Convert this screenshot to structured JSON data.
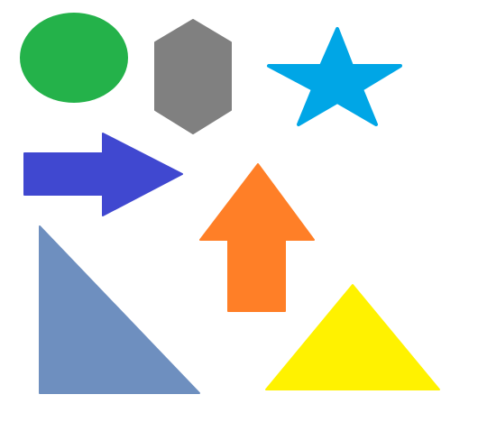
{
  "shapes": [
    {
      "id": "ellipse",
      "kind": "ellipse",
      "color": "#24B24A"
    },
    {
      "id": "hexagon",
      "kind": "hexagon",
      "color": "#808080"
    },
    {
      "id": "star",
      "kind": "five-point-star",
      "color": "#00A6E6"
    },
    {
      "id": "arrow-right",
      "kind": "arrow",
      "direction": "right",
      "color": "#4048D0"
    },
    {
      "id": "arrow-up",
      "kind": "arrow",
      "direction": "up",
      "color": "#FF7F27"
    },
    {
      "id": "right-triangle",
      "kind": "right-triangle",
      "color": "#6E8FBF"
    },
    {
      "id": "triangle",
      "kind": "isosceles-triangle",
      "color": "#FFF200"
    }
  ]
}
